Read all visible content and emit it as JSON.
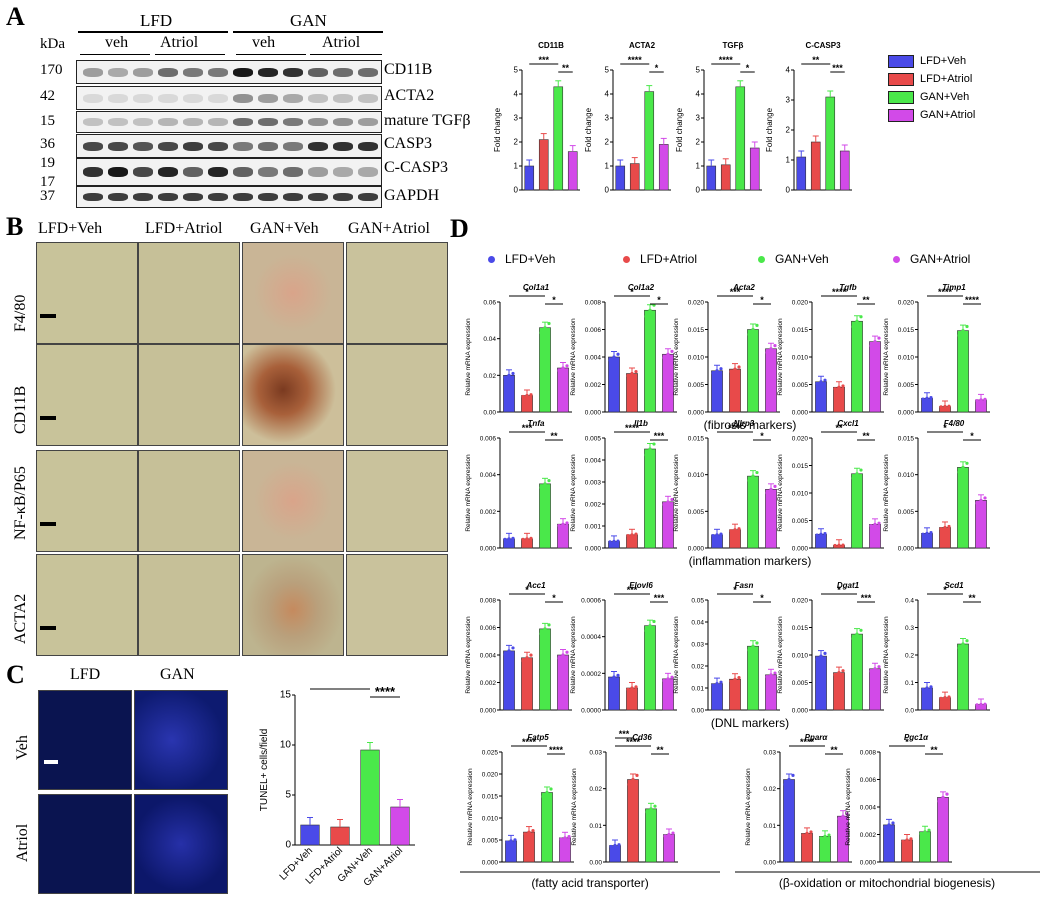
{
  "panel_labels": {
    "A": "A",
    "B": "B",
    "C": "C",
    "D": "D"
  },
  "panelA": {
    "kda": "kDa",
    "group_lfd": "LFD",
    "group_gan": "GAN",
    "veh": "veh",
    "atriol": "Atriol",
    "rows": [
      {
        "mw": "170",
        "label": "CD11B"
      },
      {
        "mw": "42",
        "label": "ACTA2"
      },
      {
        "mw": "15",
        "label": "mature TGFβ"
      },
      {
        "mw": "36",
        "label": "CASP3"
      },
      {
        "mw": "19",
        "mw2": "17",
        "label": "C-CASP3"
      },
      {
        "mw": "37",
        "label": "GAPDH"
      }
    ],
    "legend": [
      "LFD+Veh",
      "LFD+Atriol",
      "GAN+Veh",
      "GAN+Atriol"
    ],
    "colors": [
      "#4a4ae8",
      "#e84a4a",
      "#4ae84a",
      "#d24ae8"
    ]
  },
  "chart_data": [
    {
      "type": "bar",
      "title": "CD11B",
      "ylabel": "Fold change",
      "ylim": [
        0,
        5
      ],
      "categories": [
        "LFD+Veh",
        "LFD+Atriol",
        "GAN+Veh",
        "GAN+Atriol"
      ],
      "values": [
        1.0,
        2.1,
        4.3,
        1.6
      ],
      "sig": [
        "***",
        "**"
      ]
    },
    {
      "type": "bar",
      "title": "ACTA2",
      "ylabel": "Fold change",
      "ylim": [
        0,
        5
      ],
      "categories": [
        "LFD+Veh",
        "LFD+Atriol",
        "GAN+Veh",
        "GAN+Atriol"
      ],
      "values": [
        1.0,
        1.1,
        4.1,
        1.9
      ],
      "sig": [
        "****",
        "*"
      ]
    },
    {
      "type": "bar",
      "title": "TGFβ",
      "ylabel": "Fold change",
      "ylim": [
        0,
        5
      ],
      "categories": [
        "LFD+Veh",
        "LFD+Atriol",
        "GAN+Veh",
        "GAN+Atriol"
      ],
      "values": [
        1.0,
        1.05,
        4.3,
        1.75
      ],
      "sig": [
        "****",
        "*"
      ]
    },
    {
      "type": "bar",
      "title": "C-CASP3",
      "ylabel": "Fold change",
      "ylim": [
        0,
        4
      ],
      "categories": [
        "LFD+Veh",
        "LFD+Atriol",
        "GAN+Veh",
        "GAN+Atriol"
      ],
      "values": [
        1.1,
        1.6,
        3.1,
        1.3
      ],
      "sig": [
        "**",
        "***"
      ]
    },
    {
      "type": "bar",
      "title": "",
      "ylabel": "TUNEL+ cells/field",
      "ylim": [
        0,
        15
      ],
      "yticks": [
        0,
        5,
        10,
        15
      ],
      "categories": [
        "LFD+Veh",
        "LFD+Atriol",
        "GAN+Veh",
        "GAN+Atriol"
      ],
      "values": [
        2.0,
        1.8,
        9.5,
        3.8
      ],
      "sig": [
        "****",
        "****"
      ]
    }
  ],
  "panelB": {
    "cols": [
      "LFD+Veh",
      "LFD+Atriol",
      "GAN+Veh",
      "GAN+Atriol"
    ],
    "rows": [
      "F4/80",
      "CD11B",
      "NF-κB/P65",
      "ACTA2"
    ]
  },
  "panelC": {
    "cols": [
      "LFD",
      "GAN"
    ],
    "rows": [
      "Veh",
      "Atriol"
    ]
  },
  "panelD": {
    "legend": [
      "LFD+Veh",
      "LFD+Atriol",
      "GAN+Veh",
      "GAN+Atriol"
    ],
    "ylabel": "Relative mRNA expression",
    "rows": [
      {
        "group": "(fibrosis markers)",
        "genes": [
          {
            "name": "Col1a1",
            "ylim": [
              0,
              0.06
            ],
            "yticks": [
              "0.00",
              "0.02",
              "0.04",
              "0.06"
            ],
            "values": [
              0.02,
              0.009,
              0.046,
              0.024
            ],
            "sig": [
              "*",
              "*"
            ]
          },
          {
            "name": "Col1a2",
            "ylim": [
              0,
              0.008
            ],
            "yticks": [
              "0.000",
              "0.002",
              "0.004",
              "0.006",
              "0.008"
            ],
            "values": [
              0.004,
              0.0028,
              0.0074,
              0.0042
            ],
            "sig": [
              "*",
              "*"
            ]
          },
          {
            "name": "Acta2",
            "ylim": [
              0,
              0.02
            ],
            "yticks": [
              "0.000",
              "0.005",
              "0.010",
              "0.015",
              "0.020"
            ],
            "values": [
              0.0075,
              0.0078,
              0.015,
              0.0115
            ],
            "sig": [
              "***",
              "*"
            ]
          },
          {
            "name": "Tgfb",
            "ylim": [
              0,
              0.02
            ],
            "yticks": [
              "0.000",
              "0.005",
              "0.010",
              "0.015",
              "0.020"
            ],
            "values": [
              0.0055,
              0.0045,
              0.0165,
              0.0128
            ],
            "sig": [
              "****",
              "**"
            ]
          },
          {
            "name": "Timp1",
            "ylim": [
              0,
              0.02
            ],
            "yticks": [
              "0.000",
              "0.005",
              "0.010",
              "0.015",
              "0.020"
            ],
            "values": [
              0.0025,
              0.001,
              0.0148,
              0.0022
            ],
            "sig": [
              "****",
              "****"
            ]
          }
        ]
      },
      {
        "group": "(inflammation markers)",
        "genes": [
          {
            "name": "Tnfa",
            "ylim": [
              0,
              0.006
            ],
            "yticks": [
              "0.000",
              "0.002",
              "0.004",
              "0.006"
            ],
            "values": [
              0.0005,
              0.0005,
              0.0035,
              0.0013
            ],
            "sig": [
              "***",
              "**"
            ]
          },
          {
            "name": "Il1b",
            "ylim": [
              0,
              0.005
            ],
            "yticks": [
              "0.000",
              "0.001",
              "0.002",
              "0.003",
              "0.004",
              "0.005"
            ],
            "values": [
              0.0003,
              0.0006,
              0.0045,
              0.0021
            ],
            "sig": [
              "****",
              "***"
            ]
          },
          {
            "name": "Nlrp3",
            "ylim": [
              0,
              0.015
            ],
            "yticks": [
              "0.000",
              "0.005",
              "0.010",
              "0.015"
            ],
            "values": [
              0.0018,
              0.0025,
              0.0098,
              0.008
            ],
            "sig": [
              "****",
              "*"
            ]
          },
          {
            "name": "Cxcl1",
            "ylim": [
              0,
              0.02
            ],
            "yticks": [
              "0.000",
              "0.005",
              "0.010",
              "0.015",
              "0.020"
            ],
            "values": [
              0.0025,
              0.0005,
              0.0135,
              0.0043
            ],
            "sig": [
              "**",
              "**"
            ]
          },
          {
            "name": "F4/80",
            "ylim": [
              0,
              0.015
            ],
            "yticks": [
              "0.000",
              "0.005",
              "0.010",
              "0.015"
            ],
            "values": [
              0.002,
              0.0028,
              0.011,
              0.0065
            ],
            "sig": [
              "*",
              "*"
            ]
          }
        ]
      },
      {
        "group": "(DNL markers)",
        "genes": [
          {
            "name": "Acc1",
            "ylim": [
              0,
              0.008
            ],
            "yticks": [
              "0.000",
              "0.002",
              "0.004",
              "0.006",
              "0.008"
            ],
            "values": [
              0.0043,
              0.0038,
              0.0059,
              0.004
            ],
            "sig": [
              "*",
              "*"
            ]
          },
          {
            "name": "Elovl6",
            "ylim": [
              0,
              0.0006
            ],
            "yticks": [
              "0.0000",
              "0.0002",
              "0.0004",
              "0.0006"
            ],
            "values": [
              0.00018,
              0.00012,
              0.00046,
              0.00017
            ],
            "sig": [
              "***",
              "***"
            ]
          },
          {
            "name": "Fasn",
            "ylim": [
              0,
              0.05
            ],
            "yticks": [
              "0.00",
              "0.01",
              "0.02",
              "0.03",
              "0.04",
              "0.05"
            ],
            "values": [
              0.012,
              0.014,
              0.029,
              0.016
            ],
            "sig": [
              "*",
              "*"
            ]
          },
          {
            "name": "Dgat1",
            "ylim": [
              0,
              0.02
            ],
            "yticks": [
              "0.000",
              "0.005",
              "0.010",
              "0.015",
              "0.020"
            ],
            "values": [
              0.0098,
              0.0068,
              0.0138,
              0.0075
            ],
            "sig": [
              "*",
              "***"
            ]
          },
          {
            "name": "Scd1",
            "ylim": [
              0,
              0.4
            ],
            "yticks": [
              "0.0",
              "0.1",
              "0.2",
              "0.3",
              "0.4"
            ],
            "values": [
              0.08,
              0.045,
              0.24,
              0.02
            ],
            "sig": [
              "*",
              "**"
            ]
          }
        ]
      }
    ],
    "bottom": [
      {
        "name": "Fatp5",
        "group": "(fatty acid transporter)",
        "ylim": [
          0,
          0.025
        ],
        "yticks": [
          "0.000",
          "0.005",
          "0.010",
          "0.015",
          "0.020",
          "0.025"
        ],
        "values": [
          0.0048,
          0.0068,
          0.0158,
          0.0055
        ],
        "sig": [
          "****",
          "****"
        ]
      },
      {
        "name": "Cd36",
        "group": "(fatty acid transporter)",
        "ylim": [
          0,
          0.03
        ],
        "yticks": [
          "0.00",
          "0.01",
          "0.02",
          "0.03"
        ],
        "values": [
          0.0045,
          0.0225,
          0.0145,
          0.0075
        ],
        "sig": [
          "****",
          "***",
          "**"
        ]
      },
      {
        "name": "Pparα",
        "group": "(β-oxidation or mitochondrial biogenesis)",
        "ylim": [
          0,
          0.03
        ],
        "yticks": [
          "0.00",
          "0.01",
          "0.02",
          "0.03"
        ],
        "values": [
          0.0225,
          0.0078,
          0.007,
          0.0125
        ],
        "sig": [
          "****",
          "**"
        ]
      },
      {
        "name": "Pgc1α",
        "group": "(β-oxidation or mitochondrial biogenesis)",
        "ylim": [
          0,
          0.008
        ],
        "yticks": [
          "0.000",
          "0.002",
          "0.004",
          "0.006",
          "0.008"
        ],
        "values": [
          0.0027,
          0.0016,
          0.0022,
          0.0047
        ],
        "sig": [
          "*",
          "**"
        ]
      }
    ],
    "group_fatty": "(fatty acid transporter)",
    "group_beta": "(β-oxidation or mitochondrial biogenesis)"
  }
}
